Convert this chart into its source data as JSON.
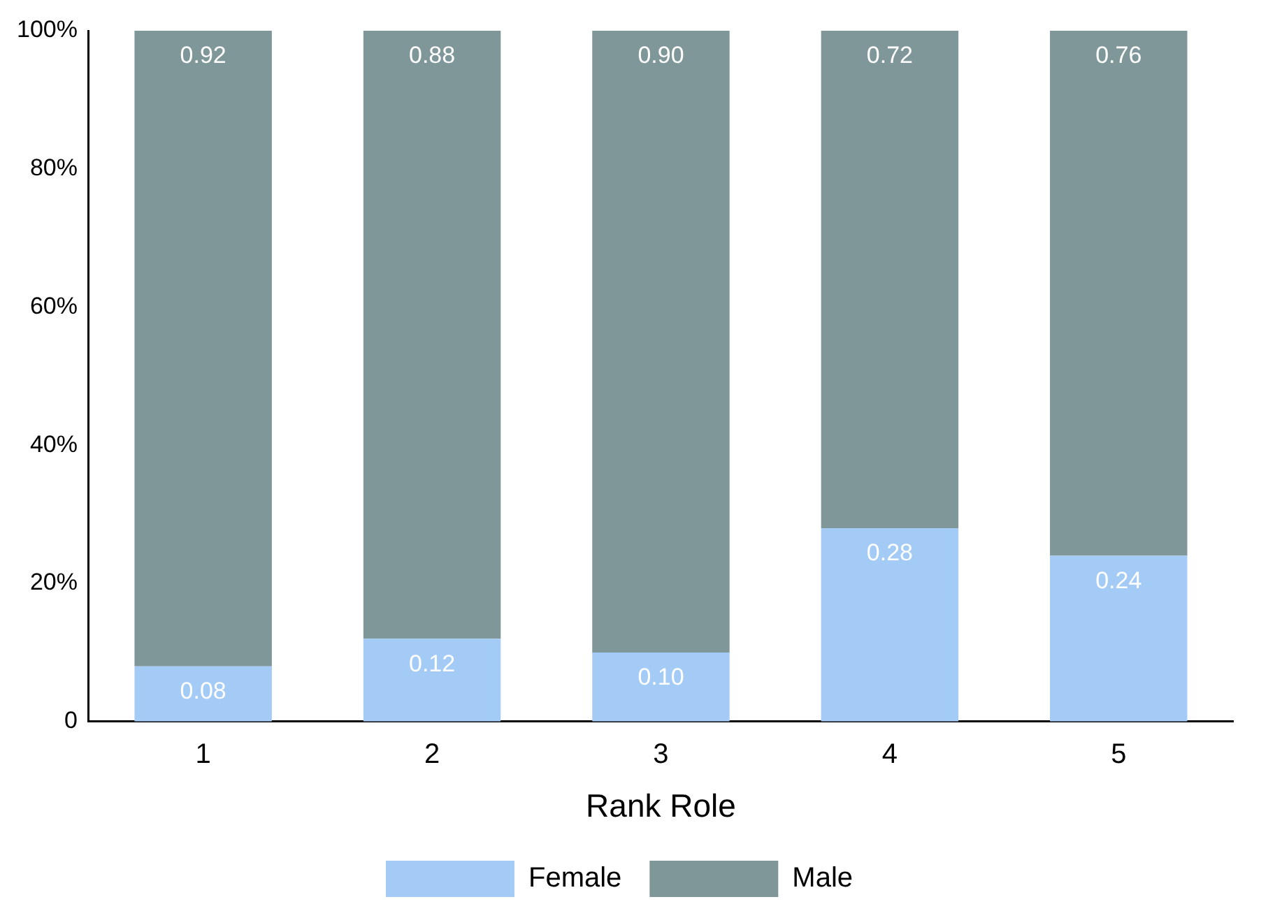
{
  "chart_data": {
    "type": "bar",
    "stacked": true,
    "xlabel": "Rank Role",
    "categories": [
      "1",
      "2",
      "3",
      "4",
      "5"
    ],
    "series": [
      {
        "name": "Female",
        "color": "#a3cbf5",
        "values": [
          0.08,
          0.12,
          0.1,
          0.28,
          0.24
        ],
        "value_labels": [
          "0.08",
          "0.12",
          "0.10",
          "0.28",
          "0.24"
        ]
      },
      {
        "name": "Male",
        "color": "#7f9799",
        "values": [
          0.92,
          0.88,
          0.9,
          0.72,
          0.76
        ],
        "value_labels": [
          "0.92",
          "0.88",
          "0.90",
          "0.72",
          "0.76"
        ]
      }
    ],
    "ylim": [
      0,
      1
    ],
    "yticks": [
      0,
      {
        "value": 0.2,
        "label": "20%"
      },
      {
        "value": 0.4,
        "label": "40%"
      },
      {
        "value": 0.6,
        "label": "60%"
      },
      {
        "value": 0.8,
        "label": "80%"
      },
      {
        "value": 1,
        "label": "100%"
      }
    ],
    "grid": false,
    "legend": "bottom"
  }
}
